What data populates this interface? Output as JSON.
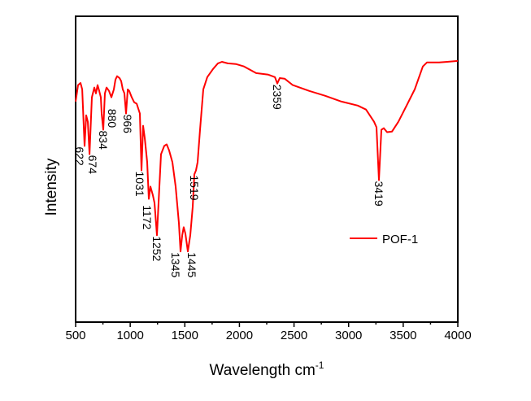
{
  "chart_data": {
    "type": "line",
    "title": "",
    "xlabel": "Wavelength cm",
    "xlabel_superscript": "-1",
    "ylabel": "Intensity",
    "xlim": [
      500,
      4000
    ],
    "ylim": [
      0,
      100
    ],
    "xticks": [
      500,
      1000,
      1500,
      2000,
      2500,
      3000,
      3500,
      4000
    ],
    "xtick_labels": [
      "500",
      "1000",
      "1500",
      "2000",
      "2500",
      "3000",
      "3500",
      "4000"
    ],
    "y_tick_labels_shown": false,
    "grid": false,
    "legend_position": "center-right",
    "series": [
      {
        "name": "POF-1",
        "color": "#ff0000",
        "x": [
          500,
          522,
          545,
          560,
          582,
          597,
          612,
          627,
          649,
          671,
          686,
          701,
          716,
          731,
          738,
          753,
          768,
          783,
          805,
          828,
          850,
          865,
          880,
          902,
          917,
          932,
          947,
          962,
          977,
          991,
          1014,
          1036,
          1059,
          1088,
          1103,
          1118,
          1133,
          1155,
          1170,
          1185,
          1207,
          1222,
          1245,
          1267,
          1282,
          1312,
          1334,
          1356,
          1386,
          1416,
          1446,
          1461,
          1476,
          1490,
          1505,
          1528,
          1550,
          1572,
          1587,
          1602,
          1617,
          1639,
          1669,
          1706,
          1759,
          1803,
          1840,
          1893,
          1967,
          2042,
          2153,
          2265,
          2325,
          2347,
          2369,
          2414,
          2488,
          2637,
          2786,
          2935,
          3084,
          3159,
          3233,
          3255,
          3278,
          3300,
          3322,
          3352,
          3397,
          3456,
          3531,
          3605,
          3680,
          3717,
          3829,
          3903,
          4000
        ],
        "y": [
          72.1,
          77.5,
          78.2,
          76.1,
          57.6,
          67.6,
          65.5,
          54.9,
          73.5,
          76.7,
          74.8,
          77.5,
          75.6,
          73.5,
          68.2,
          62.9,
          74.8,
          76.7,
          75.6,
          73.5,
          76.1,
          79.3,
          80.4,
          79.8,
          78.8,
          76.1,
          74.8,
          68.2,
          76.1,
          75.6,
          73.5,
          71.9,
          71.4,
          68.2,
          49.6,
          64.2,
          60.2,
          52.3,
          40.3,
          44.3,
          41.6,
          39.0,
          28.4,
          44.3,
          54.9,
          57.6,
          58.1,
          56.2,
          52.3,
          44.3,
          32.4,
          23.1,
          28.4,
          31.0,
          28.9,
          23.1,
          28.4,
          37.7,
          48.3,
          49.6,
          52.3,
          62.9,
          76.1,
          80.1,
          82.8,
          84.6,
          85.1,
          84.6,
          84.4,
          83.6,
          81.4,
          80.9,
          80.1,
          78.0,
          79.8,
          79.6,
          77.5,
          75.6,
          74.0,
          72.1,
          70.8,
          69.5,
          65.5,
          63.7,
          46.4,
          62.9,
          63.4,
          62.1,
          62.3,
          65.5,
          70.8,
          76.1,
          83.6,
          84.9,
          84.9,
          85.1,
          85.4
        ]
      }
    ],
    "annotations": [
      {
        "label": "622",
        "x": 582,
        "y": 57.6
      },
      {
        "label": "674",
        "x": 627,
        "y": 54.9
      },
      {
        "label": "834",
        "x": 753,
        "y": 62.9
      },
      {
        "label": "880",
        "x": 850,
        "y": 70.0
      },
      {
        "label": "966",
        "x": 962,
        "y": 68.2
      },
      {
        "label": "1031",
        "x": 1088,
        "y": 49.6
      },
      {
        "label": "1172",
        "x": 1155,
        "y": 38.5
      },
      {
        "label": "1252",
        "x": 1245,
        "y": 28.4
      },
      {
        "label": "1345",
        "x": 1446,
        "y": 23.1
      },
      {
        "label": "1445",
        "x": 1528,
        "y": 23.1
      },
      {
        "label": "1519",
        "x": 1587,
        "y": 48.3
      },
      {
        "label": "2359",
        "x": 2347,
        "y": 78.0
      },
      {
        "label": "3419",
        "x": 3278,
        "y": 46.4
      }
    ]
  }
}
